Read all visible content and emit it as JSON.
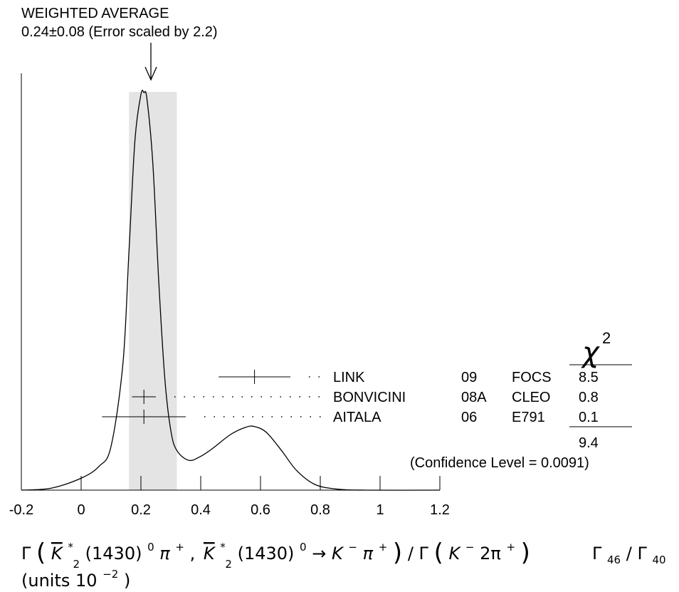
{
  "chart_data": {
    "type": "ideogram",
    "header": {
      "title": "WEIGHTED AVERAGE",
      "subtitle": "0.24±0.08 (Error scaled by 2.2)"
    },
    "weighted_average": {
      "value": 0.24,
      "error": 0.08,
      "scale_factor": 2.2
    },
    "x_ticks": [
      "-0.2",
      "0",
      "0.2",
      "0.4",
      "0.6",
      "0.8",
      "1",
      "1.2"
    ],
    "xlim": [
      -0.2,
      1.2
    ],
    "chi2_header": "χ",
    "chi2_header_sup": "2",
    "measurements": [
      {
        "author": "LINK",
        "year": "09",
        "experiment": "FOCS",
        "chi2": "8.5",
        "value": 0.58,
        "err_minus": 0.12,
        "err_plus": 0.12
      },
      {
        "author": "BONVICINI",
        "year": "08A",
        "experiment": "CLEO",
        "chi2": "0.8",
        "value": 0.21,
        "err_minus": 0.04,
        "err_plus": 0.04
      },
      {
        "author": "AITALA",
        "year": "06",
        "experiment": "E791",
        "chi2": "0.1",
        "value": 0.21,
        "err_minus": 0.14,
        "err_plus": 0.14
      }
    ],
    "chi2_total": "9.4",
    "confidence_level": "(Confidence Level = 0.0091)",
    "curve_points": [
      [
        -0.2,
        0.0
      ],
      [
        -0.1,
        0.005
      ],
      [
        0.0,
        0.03
      ],
      [
        0.06,
        0.06
      ],
      [
        0.1,
        0.11
      ],
      [
        0.14,
        0.32
      ],
      [
        0.16,
        0.6
      ],
      [
        0.18,
        0.88
      ],
      [
        0.2,
        0.995
      ],
      [
        0.21,
        1.0
      ],
      [
        0.22,
        0.985
      ],
      [
        0.24,
        0.82
      ],
      [
        0.26,
        0.52
      ],
      [
        0.28,
        0.28
      ],
      [
        0.3,
        0.15
      ],
      [
        0.32,
        0.1
      ],
      [
        0.36,
        0.075
      ],
      [
        0.4,
        0.085
      ],
      [
        0.44,
        0.105
      ],
      [
        0.5,
        0.14
      ],
      [
        0.55,
        0.158
      ],
      [
        0.58,
        0.16
      ],
      [
        0.62,
        0.145
      ],
      [
        0.67,
        0.1
      ],
      [
        0.72,
        0.05
      ],
      [
        0.78,
        0.015
      ],
      [
        0.85,
        0.003
      ],
      [
        0.95,
        0.0
      ],
      [
        1.2,
        0.0
      ]
    ]
  },
  "caption": {
    "gamma": "Γ",
    "kbar": "K",
    "k2_sub": "2",
    "k2_sup": "*",
    "mass_zero": "(1430)",
    "zero_sup": "0",
    "pi": "π",
    "plus_sup": "+",
    "comma": ",",
    "arrow": "→",
    "k": "K",
    "minus_sup": "−",
    "slash": "/",
    "two_pi": "2π",
    "paren_open": "(",
    "paren_close": ")",
    "ratio_gamma": "Γ",
    "ratio_sub_num": "46",
    "ratio_slash": "/",
    "ratio_sub_den": "40",
    "units_prefix": "(units 10",
    "units_exp": "−2",
    "units_suffix": ")"
  }
}
